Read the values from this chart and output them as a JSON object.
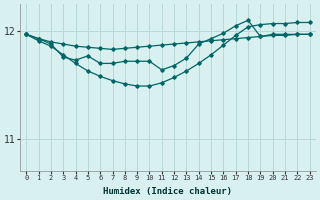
{
  "xlabel": "Humidex (Indice chaleur)",
  "bg_color": "#d8f0f0",
  "grid_color": "#b8d8d8",
  "line_color": "#006666",
  "xlim": [
    -0.5,
    23.5
  ],
  "ylim": [
    10.7,
    12.25
  ],
  "yticks": [
    11,
    12
  ],
  "xticks": [
    0,
    1,
    2,
    3,
    4,
    5,
    6,
    7,
    8,
    9,
    10,
    11,
    12,
    13,
    14,
    15,
    16,
    17,
    18,
    19,
    20,
    21,
    22,
    23
  ],
  "line1_y": [
    11.97,
    11.93,
    11.9,
    11.88,
    11.86,
    11.85,
    11.84,
    11.83,
    11.84,
    11.85,
    11.86,
    11.87,
    11.88,
    11.89,
    11.9,
    11.91,
    11.92,
    11.93,
    11.94,
    11.95,
    11.96,
    11.96,
    11.97,
    11.97
  ],
  "line2_y": [
    11.97,
    11.91,
    11.86,
    11.78,
    11.7,
    11.63,
    11.58,
    11.54,
    11.51,
    11.49,
    11.49,
    11.52,
    11.57,
    11.63,
    11.7,
    11.78,
    11.87,
    11.96,
    12.04,
    12.06,
    12.07,
    12.07,
    12.08,
    12.08
  ],
  "line3_y": [
    11.97,
    11.93,
    11.88,
    11.76,
    11.73,
    11.77,
    11.7,
    11.7,
    11.72,
    11.72,
    11.72,
    11.64,
    11.68,
    11.75,
    11.88,
    11.93,
    11.98,
    12.05,
    12.1,
    11.95,
    11.97,
    11.97,
    11.97,
    11.97
  ]
}
